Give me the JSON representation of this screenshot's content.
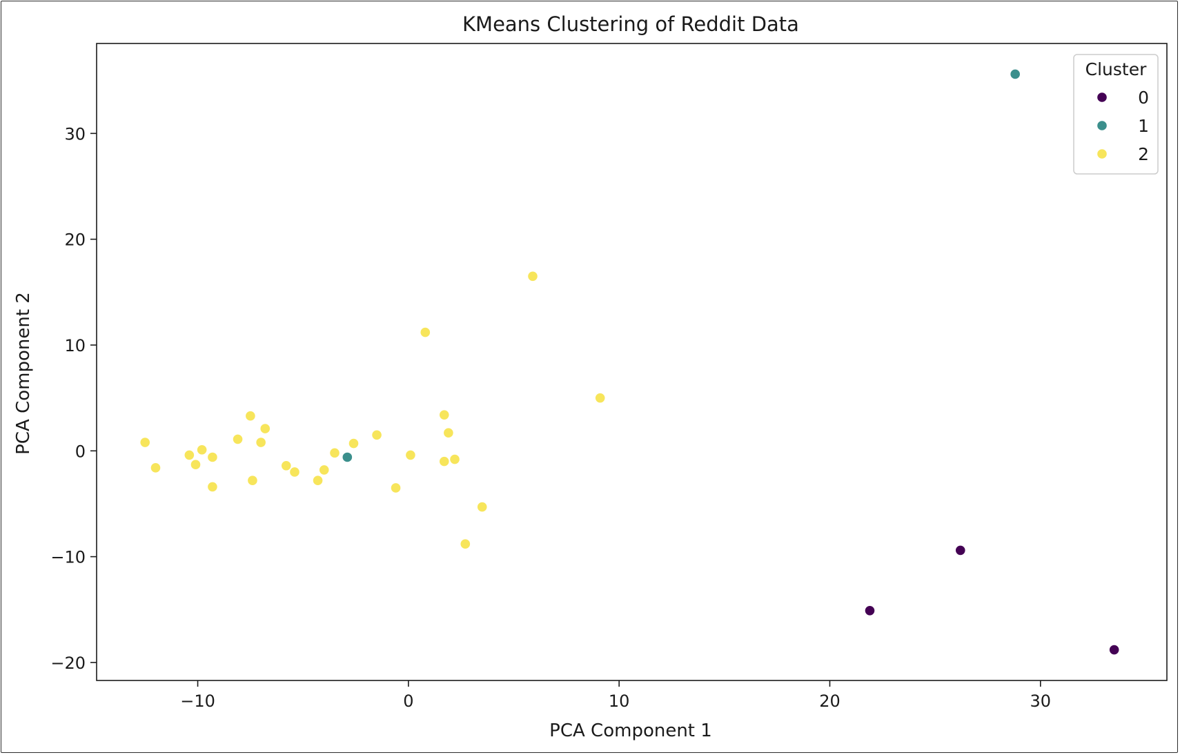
{
  "chart_data": {
    "type": "scatter",
    "title": "KMeans Clustering of Reddit Data",
    "xlabel": "PCA Component 1",
    "ylabel": "PCA Component 2",
    "xlim": [
      -14.8,
      36.0
    ],
    "ylim": [
      -21.7,
      38.5
    ],
    "xticks": [
      -10,
      0,
      10,
      20,
      30
    ],
    "yticks": [
      -20,
      -10,
      0,
      10,
      20,
      30
    ],
    "xtick_labels": [
      "−10",
      "0",
      "10",
      "20",
      "30"
    ],
    "ytick_labels": [
      "−20",
      "−10",
      "0",
      "10",
      "20",
      "30"
    ],
    "grid": false,
    "legend": {
      "title": "Cluster",
      "placement": "top-right",
      "entries": [
        "0",
        "1",
        "2"
      ]
    },
    "colors": {
      "0": "#440154",
      "1": "#3b8f8c",
      "2": "#f7e55b"
    },
    "series": [
      {
        "name": "0",
        "color": "#440154",
        "points": [
          {
            "x": 21.9,
            "y": -15.1
          },
          {
            "x": 26.2,
            "y": -9.4
          },
          {
            "x": 33.5,
            "y": -18.8
          }
        ]
      },
      {
        "name": "1",
        "color": "#3b8f8c",
        "points": [
          {
            "x": 28.8,
            "y": 35.6
          },
          {
            "x": -2.9,
            "y": -0.6
          }
        ]
      },
      {
        "name": "2",
        "color": "#f7e55b",
        "points": [
          {
            "x": -12.5,
            "y": 0.8
          },
          {
            "x": -12.0,
            "y": -1.6
          },
          {
            "x": -10.4,
            "y": -0.4
          },
          {
            "x": -10.1,
            "y": -1.3
          },
          {
            "x": -9.8,
            "y": 0.1
          },
          {
            "x": -9.3,
            "y": -0.6
          },
          {
            "x": -9.3,
            "y": -3.4
          },
          {
            "x": -8.1,
            "y": 1.1
          },
          {
            "x": -7.5,
            "y": 3.3
          },
          {
            "x": -7.4,
            "y": -2.8
          },
          {
            "x": -7.0,
            "y": 0.8
          },
          {
            "x": -6.8,
            "y": 2.1
          },
          {
            "x": -5.8,
            "y": -1.4
          },
          {
            "x": -5.4,
            "y": -2.0
          },
          {
            "x": -4.3,
            "y": -2.8
          },
          {
            "x": -4.0,
            "y": -1.8
          },
          {
            "x": -3.5,
            "y": -0.2
          },
          {
            "x": -2.6,
            "y": 0.7
          },
          {
            "x": -1.5,
            "y": 1.5
          },
          {
            "x": -0.6,
            "y": -3.5
          },
          {
            "x": 0.1,
            "y": -0.4
          },
          {
            "x": 0.8,
            "y": 11.2
          },
          {
            "x": 1.7,
            "y": 3.4
          },
          {
            "x": 1.9,
            "y": 1.7
          },
          {
            "x": 1.7,
            "y": -1.0
          },
          {
            "x": 2.2,
            "y": -0.8
          },
          {
            "x": 2.7,
            "y": -8.8
          },
          {
            "x": 3.5,
            "y": -5.3
          },
          {
            "x": 5.9,
            "y": 16.5
          },
          {
            "x": 9.1,
            "y": 5.0
          }
        ]
      }
    ]
  }
}
